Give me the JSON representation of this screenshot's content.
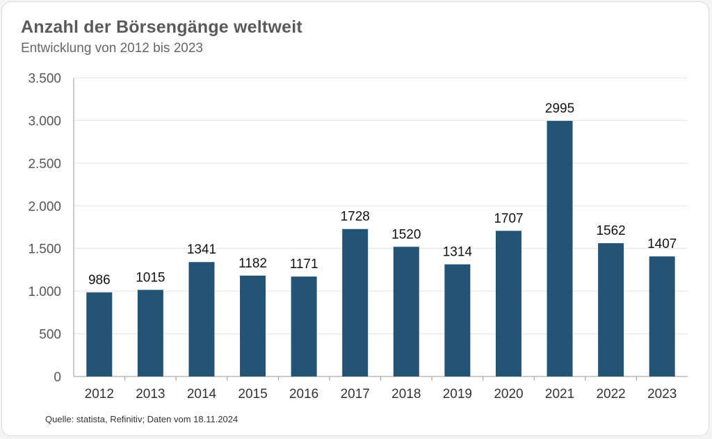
{
  "colors": {
    "bar": "#245474",
    "grid": "#e2e2e2",
    "axis": "#9a9a9a"
  },
  "chart_data": {
    "type": "bar",
    "title": "Anzahl der Börsengänge weltweit",
    "subtitle": "Entwicklung von 2012 bis 2023",
    "categories": [
      "2012",
      "2013",
      "2014",
      "2015",
      "2016",
      "2017",
      "2018",
      "2019",
      "2020",
      "2021",
      "2022",
      "2023"
    ],
    "values": [
      986,
      1015,
      1341,
      1182,
      1171,
      1728,
      1520,
      1314,
      1707,
      2995,
      1562,
      1407
    ],
    "data_labels": [
      "986",
      "1015",
      "1341",
      "1182",
      "1171",
      "1728",
      "1520",
      "1314",
      "1707",
      "2995",
      "1562",
      "1407"
    ],
    "yticks": [
      0,
      500,
      1000,
      1500,
      2000,
      2500,
      3000,
      3500
    ],
    "ytick_labels": [
      "0",
      "500",
      "1.000",
      "1.500",
      "2.000",
      "2.500",
      "3.000",
      "3.500"
    ],
    "ylim": [
      0,
      3500
    ],
    "xlabel": "",
    "ylabel": "",
    "grid": true,
    "legend": "none",
    "source": "Quelle: statista, Refinitiv; Daten vom 18.11.2024"
  }
}
